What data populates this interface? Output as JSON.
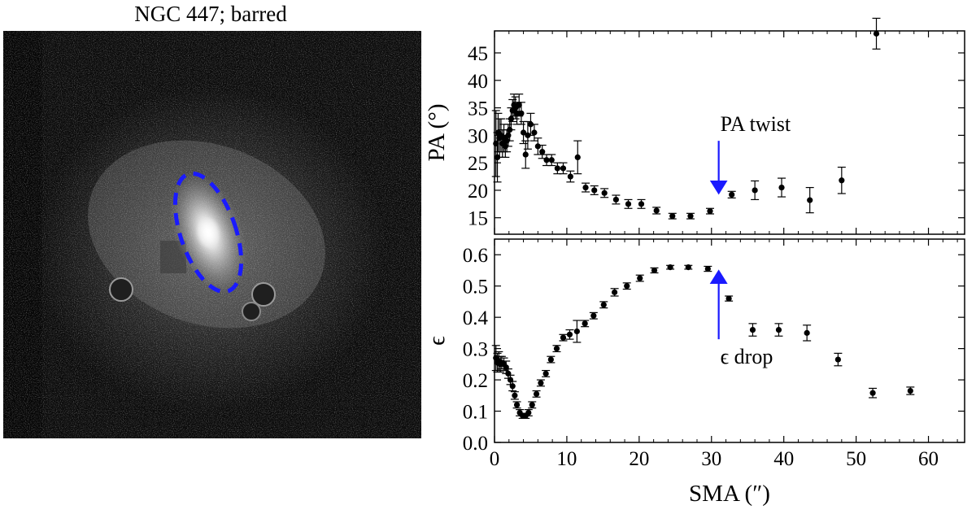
{
  "image_panel": {
    "title": "NGC 447; barred",
    "ellipse_color": "#1a1aff"
  },
  "chart_data": [
    {
      "id": "pa",
      "type": "scatter",
      "ylabel": "PA (°)",
      "xlabel": "",
      "xlim": [
        0,
        65
      ],
      "ylim": [
        12,
        49
      ],
      "yticks": [
        15,
        20,
        25,
        30,
        35,
        40,
        45
      ],
      "xticks": [
        0,
        10,
        20,
        30,
        40,
        50,
        60
      ],
      "show_xtick_labels": false,
      "annotation": {
        "text": "PA twist",
        "x": 31,
        "y_from": 29,
        "y_to": 20.5,
        "direction": "down",
        "color": "#1a1aff"
      },
      "points": [
        {
          "x": 0.2,
          "y": 28.5,
          "e": 6.0
        },
        {
          "x": 0.4,
          "y": 26.0,
          "e": 4.5
        },
        {
          "x": 0.5,
          "y": 30.5,
          "e": 3.5
        },
        {
          "x": 0.7,
          "y": 29.5,
          "e": 3.5
        },
        {
          "x": 0.9,
          "y": 30.0,
          "e": 3.0
        },
        {
          "x": 1.1,
          "y": 28.5,
          "e": 2.5
        },
        {
          "x": 1.3,
          "y": 29.5,
          "e": 2.5
        },
        {
          "x": 1.5,
          "y": 28.0,
          "e": 2.0
        },
        {
          "x": 1.7,
          "y": 29.0,
          "e": 2.0
        },
        {
          "x": 1.9,
          "y": 30.0,
          "e": 2.0
        },
        {
          "x": 2.1,
          "y": 31.0,
          "e": 2.0
        },
        {
          "x": 2.3,
          "y": 33.0,
          "e": 2.0
        },
        {
          "x": 2.5,
          "y": 34.5,
          "e": 2.0
        },
        {
          "x": 2.7,
          "y": 35.5,
          "e": 2.0
        },
        {
          "x": 2.9,
          "y": 35.0,
          "e": 2.0
        },
        {
          "x": 3.1,
          "y": 34.0,
          "e": 2.0
        },
        {
          "x": 3.4,
          "y": 35.5,
          "e": 2.0
        },
        {
          "x": 3.7,
          "y": 34.0,
          "e": 2.0
        },
        {
          "x": 4.0,
          "y": 30.5,
          "e": 2.0
        },
        {
          "x": 4.3,
          "y": 26.5,
          "e": 2.5
        },
        {
          "x": 4.6,
          "y": 30.0,
          "e": 2.5
        },
        {
          "x": 5.0,
          "y": 32.0,
          "e": 2.0
        },
        {
          "x": 5.5,
          "y": 30.5,
          "e": 1.5
        },
        {
          "x": 6.0,
          "y": 28.0,
          "e": 1.5
        },
        {
          "x": 6.6,
          "y": 27.0,
          "e": 1.2
        },
        {
          "x": 7.2,
          "y": 25.5,
          "e": 1.0
        },
        {
          "x": 7.9,
          "y": 25.5,
          "e": 1.0
        },
        {
          "x": 8.7,
          "y": 24.0,
          "e": 1.0
        },
        {
          "x": 9.5,
          "y": 24.0,
          "e": 1.0
        },
        {
          "x": 10.5,
          "y": 22.5,
          "e": 1.0
        },
        {
          "x": 11.5,
          "y": 26.0,
          "e": 3.0
        },
        {
          "x": 12.6,
          "y": 20.5,
          "e": 0.8
        },
        {
          "x": 13.8,
          "y": 20.0,
          "e": 0.8
        },
        {
          "x": 15.2,
          "y": 19.5,
          "e": 0.8
        },
        {
          "x": 16.8,
          "y": 18.3,
          "e": 0.8
        },
        {
          "x": 18.5,
          "y": 17.5,
          "e": 0.8
        },
        {
          "x": 20.3,
          "y": 17.5,
          "e": 0.8
        },
        {
          "x": 22.4,
          "y": 16.3,
          "e": 0.6
        },
        {
          "x": 24.6,
          "y": 15.3,
          "e": 0.5
        },
        {
          "x": 27.1,
          "y": 15.3,
          "e": 0.5
        },
        {
          "x": 29.8,
          "y": 16.2,
          "e": 0.5
        },
        {
          "x": 32.8,
          "y": 19.2,
          "e": 0.6
        },
        {
          "x": 36.0,
          "y": 20.0,
          "e": 1.7
        },
        {
          "x": 39.7,
          "y": 20.5,
          "e": 1.7
        },
        {
          "x": 43.6,
          "y": 18.2,
          "e": 2.3
        },
        {
          "x": 48.0,
          "y": 21.8,
          "e": 2.4
        },
        {
          "x": 52.8,
          "y": 48.5,
          "e": 2.8
        }
      ]
    },
    {
      "id": "eps",
      "type": "scatter",
      "ylabel": "ϵ",
      "xlabel": "SMA (″)",
      "xlim": [
        0,
        65
      ],
      "ylim": [
        0.0,
        0.65
      ],
      "yticks": [
        0.0,
        0.1,
        0.2,
        0.3,
        0.4,
        0.5,
        0.6
      ],
      "ytick_labels": [
        "0.0",
        "0.1",
        "0.2",
        "0.3",
        "0.4",
        "0.5",
        "0.6"
      ],
      "xticks": [
        0,
        10,
        20,
        30,
        40,
        50,
        60
      ],
      "xtick_labels": [
        "0",
        "10",
        "20",
        "30",
        "40",
        "50",
        "60"
      ],
      "show_xtick_labels": true,
      "annotation": {
        "text": "ϵ drop",
        "x": 31,
        "y_from": 0.33,
        "y_to": 0.53,
        "direction": "up",
        "color": "#1a1aff"
      },
      "points": [
        {
          "x": 0.2,
          "y": 0.27,
          "e": 0.04
        },
        {
          "x": 0.4,
          "y": 0.255,
          "e": 0.03
        },
        {
          "x": 0.6,
          "y": 0.26,
          "e": 0.03
        },
        {
          "x": 0.8,
          "y": 0.25,
          "e": 0.025
        },
        {
          "x": 1.0,
          "y": 0.255,
          "e": 0.02
        },
        {
          "x": 1.3,
          "y": 0.25,
          "e": 0.02
        },
        {
          "x": 1.6,
          "y": 0.24,
          "e": 0.02
        },
        {
          "x": 1.9,
          "y": 0.22,
          "e": 0.015
        },
        {
          "x": 2.2,
          "y": 0.2,
          "e": 0.015
        },
        {
          "x": 2.5,
          "y": 0.18,
          "e": 0.015
        },
        {
          "x": 2.8,
          "y": 0.15,
          "e": 0.012
        },
        {
          "x": 3.1,
          "y": 0.12,
          "e": 0.01
        },
        {
          "x": 3.5,
          "y": 0.095,
          "e": 0.01
        },
        {
          "x": 3.9,
          "y": 0.085,
          "e": 0.008
        },
        {
          "x": 4.3,
          "y": 0.085,
          "e": 0.008
        },
        {
          "x": 4.7,
          "y": 0.095,
          "e": 0.01
        },
        {
          "x": 5.2,
          "y": 0.12,
          "e": 0.01
        },
        {
          "x": 5.8,
          "y": 0.155,
          "e": 0.01
        },
        {
          "x": 6.4,
          "y": 0.19,
          "e": 0.01
        },
        {
          "x": 7.1,
          "y": 0.22,
          "e": 0.01
        },
        {
          "x": 7.8,
          "y": 0.265,
          "e": 0.01
        },
        {
          "x": 8.6,
          "y": 0.3,
          "e": 0.01
        },
        {
          "x": 9.5,
          "y": 0.335,
          "e": 0.01
        },
        {
          "x": 10.4,
          "y": 0.345,
          "e": 0.015
        },
        {
          "x": 11.4,
          "y": 0.355,
          "e": 0.035
        },
        {
          "x": 12.5,
          "y": 0.38,
          "e": 0.01
        },
        {
          "x": 13.7,
          "y": 0.405,
          "e": 0.01
        },
        {
          "x": 15.1,
          "y": 0.44,
          "e": 0.01
        },
        {
          "x": 16.6,
          "y": 0.48,
          "e": 0.012
        },
        {
          "x": 18.3,
          "y": 0.5,
          "e": 0.01
        },
        {
          "x": 20.1,
          "y": 0.525,
          "e": 0.01
        },
        {
          "x": 22.1,
          "y": 0.55,
          "e": 0.008
        },
        {
          "x": 24.3,
          "y": 0.56,
          "e": 0.006
        },
        {
          "x": 26.8,
          "y": 0.56,
          "e": 0.006
        },
        {
          "x": 29.5,
          "y": 0.555,
          "e": 0.008
        },
        {
          "x": 32.4,
          "y": 0.46,
          "e": 0.008
        },
        {
          "x": 35.7,
          "y": 0.36,
          "e": 0.02
        },
        {
          "x": 39.3,
          "y": 0.36,
          "e": 0.02
        },
        {
          "x": 43.2,
          "y": 0.35,
          "e": 0.025
        },
        {
          "x": 47.5,
          "y": 0.265,
          "e": 0.02
        },
        {
          "x": 52.3,
          "y": 0.158,
          "e": 0.015
        },
        {
          "x": 57.5,
          "y": 0.165,
          "e": 0.012
        }
      ]
    }
  ]
}
